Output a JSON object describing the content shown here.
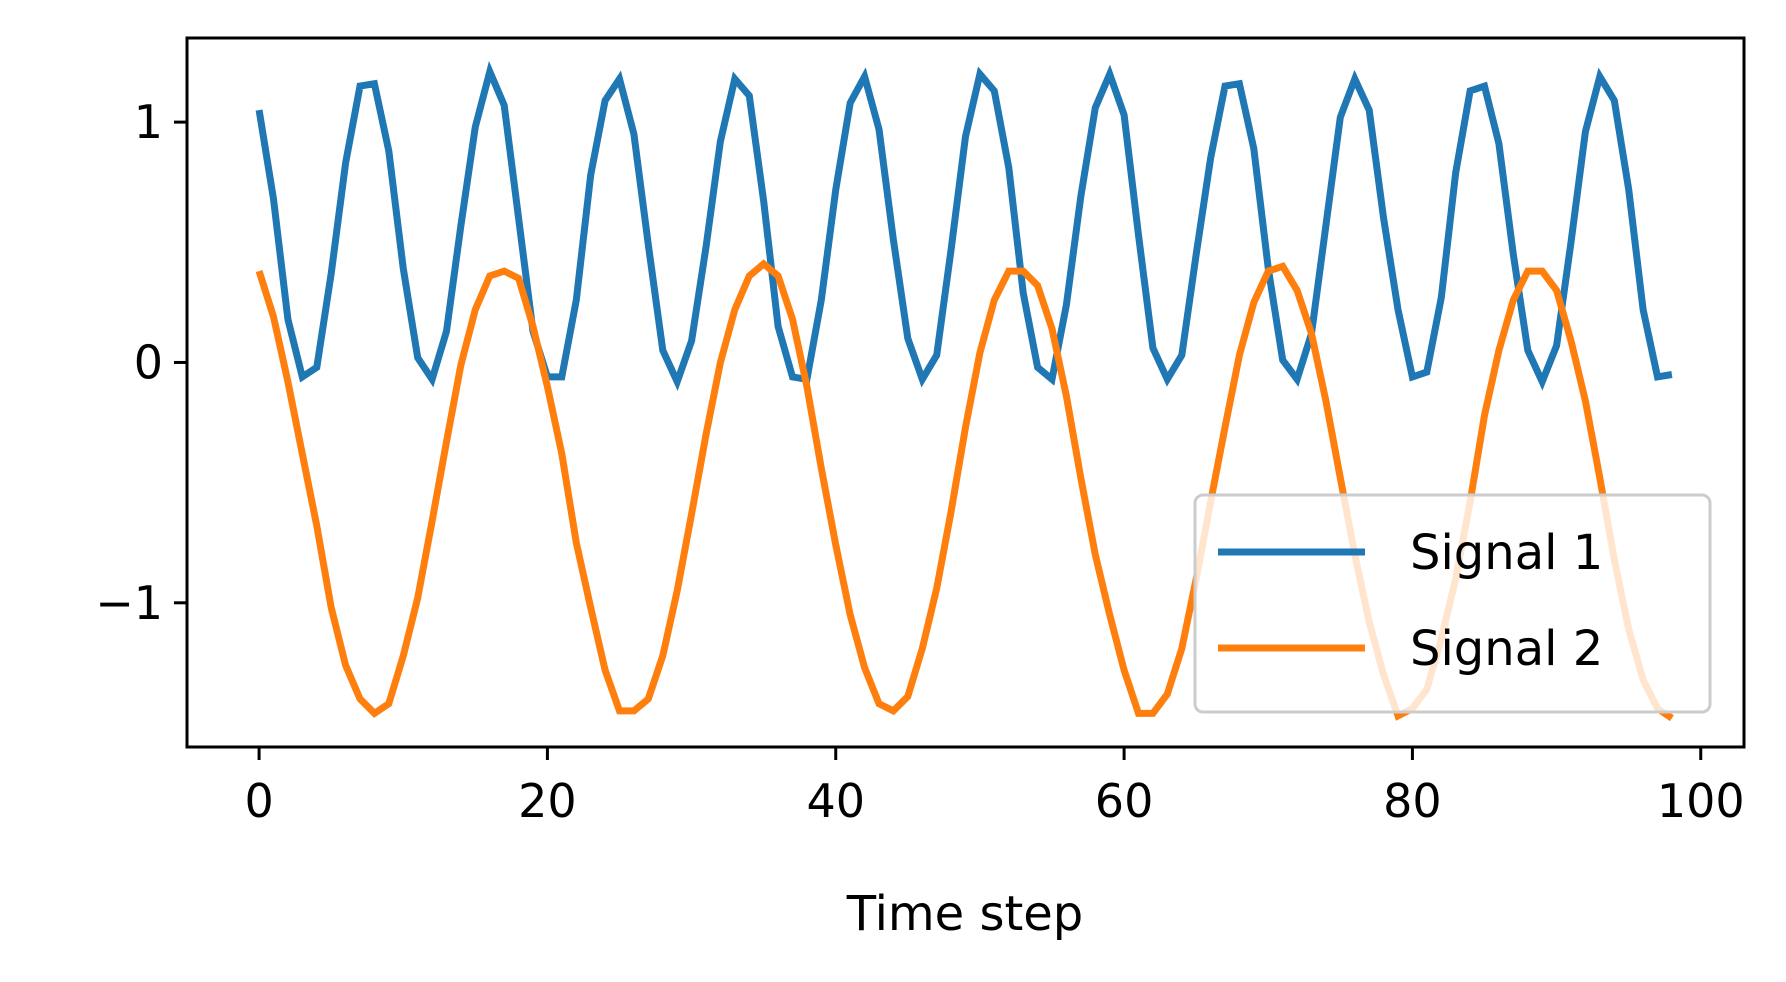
{
  "chart_data": {
    "type": "line",
    "title": "",
    "xlabel": "Time step",
    "ylabel": "",
    "xlim": [
      -5,
      103
    ],
    "ylim": [
      -1.6,
      1.35
    ],
    "grid": false,
    "legend_position": "lower-right",
    "x_ticks": [
      0,
      20,
      40,
      60,
      80,
      100
    ],
    "x_tick_labels": [
      "0",
      "20",
      "40",
      "60",
      "80",
      "100"
    ],
    "y_ticks": [
      1,
      0,
      -1
    ],
    "y_tick_labels": [
      "1",
      "0",
      "−1"
    ],
    "series": [
      {
        "name": "Signal 1",
        "color": "#1f77b4",
        "x": [
          0,
          1,
          2,
          3,
          4,
          5,
          6,
          7,
          8,
          9,
          10,
          11,
          12,
          13,
          14,
          15,
          16,
          17,
          18,
          19,
          20,
          21,
          22,
          23,
          24,
          25,
          26,
          27,
          28,
          29,
          30,
          31,
          32,
          33,
          34,
          35,
          36,
          37,
          38,
          39,
          40,
          41,
          42,
          43,
          44,
          45,
          46,
          47,
          48,
          49,
          50,
          51,
          52,
          53,
          54,
          55,
          56,
          57,
          58,
          59,
          60,
          61,
          62,
          63,
          64,
          65,
          66,
          67,
          68,
          69,
          70,
          71,
          72,
          73,
          74,
          75,
          76,
          77,
          78,
          79,
          80,
          81,
          82,
          83,
          84,
          85,
          86,
          87,
          88,
          89,
          90,
          91,
          92,
          93,
          94,
          95,
          96,
          97,
          98
        ],
        "values": [
          1.05,
          0.68,
          0.18,
          -0.06,
          -0.02,
          0.37,
          0.83,
          1.15,
          1.16,
          0.88,
          0.39,
          0.02,
          -0.07,
          0.13,
          0.57,
          0.98,
          1.21,
          1.07,
          0.6,
          0.13,
          -0.06,
          -0.06,
          0.26,
          0.78,
          1.09,
          1.18,
          0.95,
          0.49,
          0.05,
          -0.08,
          0.09,
          0.48,
          0.92,
          1.18,
          1.11,
          0.67,
          0.15,
          -0.06,
          -0.07,
          0.26,
          0.72,
          1.08,
          1.19,
          0.97,
          0.51,
          0.1,
          -0.07,
          0.03,
          0.47,
          0.94,
          1.2,
          1.13,
          0.81,
          0.29,
          -0.02,
          -0.07,
          0.24,
          0.69,
          1.06,
          1.2,
          1.03,
          0.53,
          0.06,
          -0.07,
          0.03,
          0.45,
          0.85,
          1.15,
          1.16,
          0.89,
          0.39,
          0.01,
          -0.07,
          0.12,
          0.57,
          1.02,
          1.18,
          1.05,
          0.6,
          0.22,
          -0.06,
          -0.04,
          0.27,
          0.79,
          1.13,
          1.15,
          0.91,
          0.45,
          0.05,
          -0.08,
          0.07,
          0.5,
          0.96,
          1.19,
          1.09,
          0.72,
          0.22,
          -0.06,
          -0.05
        ]
      },
      {
        "name": "Signal 2",
        "color": "#ff7f0e",
        "x": [
          0,
          1,
          2,
          3,
          4,
          5,
          6,
          7,
          8,
          9,
          10,
          11,
          12,
          13,
          14,
          15,
          16,
          17,
          18,
          19,
          20,
          21,
          22,
          23,
          24,
          25,
          26,
          27,
          28,
          29,
          30,
          31,
          32,
          33,
          34,
          35,
          36,
          37,
          38,
          39,
          40,
          41,
          42,
          43,
          44,
          45,
          46,
          47,
          48,
          49,
          50,
          51,
          52,
          53,
          54,
          55,
          56,
          57,
          58,
          59,
          60,
          61,
          62,
          63,
          64,
          65,
          66,
          67,
          68,
          69,
          70,
          71,
          72,
          73,
          74,
          75,
          76,
          77,
          78,
          79,
          80,
          81,
          82,
          83,
          84,
          85,
          86,
          87,
          88,
          89,
          90,
          91,
          92,
          93,
          94,
          95,
          96,
          97,
          98
        ],
        "values": [
          0.38,
          0.19,
          -0.08,
          -0.38,
          -0.68,
          -1.02,
          -1.26,
          -1.4,
          -1.46,
          -1.42,
          -1.22,
          -0.98,
          -0.66,
          -0.33,
          -0.01,
          0.22,
          0.36,
          0.38,
          0.35,
          0.15,
          -0.1,
          -0.38,
          -0.75,
          -1.02,
          -1.28,
          -1.45,
          -1.45,
          -1.4,
          -1.22,
          -0.95,
          -0.63,
          -0.3,
          0.0,
          0.22,
          0.36,
          0.41,
          0.36,
          0.18,
          -0.1,
          -0.44,
          -0.76,
          -1.05,
          -1.27,
          -1.42,
          -1.45,
          -1.39,
          -1.19,
          -0.94,
          -0.62,
          -0.27,
          0.04,
          0.26,
          0.38,
          0.38,
          0.32,
          0.14,
          -0.14,
          -0.48,
          -0.8,
          -1.05,
          -1.28,
          -1.46,
          -1.46,
          -1.38,
          -1.19,
          -0.9,
          -0.58,
          -0.27,
          0.03,
          0.25,
          0.38,
          0.4,
          0.3,
          0.12,
          -0.16,
          -0.48,
          -0.8,
          -1.08,
          -1.3,
          -1.47,
          -1.44,
          -1.36,
          -1.15,
          -0.9,
          -0.58,
          -0.22,
          0.05,
          0.26,
          0.38,
          0.38,
          0.3,
          0.09,
          -0.16,
          -0.48,
          -0.82,
          -1.11,
          -1.32,
          -1.44,
          -1.48
        ]
      }
    ]
  }
}
